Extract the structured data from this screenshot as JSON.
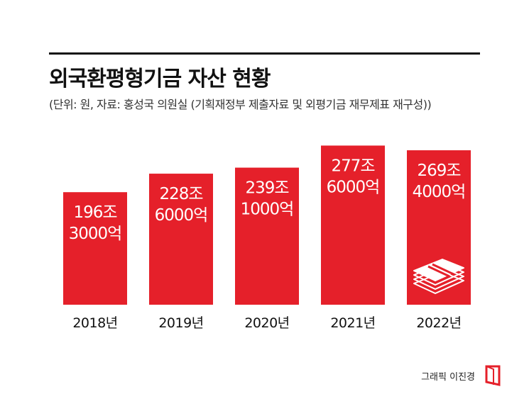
{
  "title": "외국환평형기금 자산 현황",
  "subtitle": "(단위: 원, 자료: 홍성국 의원실 (기획재정부 제출자료 및 외평기금 재무제표 재구성))",
  "credit": "그래픽 이진경",
  "colors": {
    "bar": "#e5202a",
    "label": "#ffffff",
    "text": "#111111"
  },
  "icons": {
    "money": "money-stack-icon",
    "logo": "brand-logo-icon"
  },
  "chart_data": {
    "type": "bar",
    "categories": [
      "2018년",
      "2019년",
      "2020년",
      "2021년",
      "2022년"
    ],
    "values": [
      196.3,
      228.6,
      239.1,
      277.6,
      269.4
    ],
    "value_labels": [
      [
        "196조",
        "3000억"
      ],
      [
        "228조",
        "6000억"
      ],
      [
        "239조",
        "1000억"
      ],
      [
        "277조",
        "6000억"
      ],
      [
        "269조",
        "4000억"
      ]
    ],
    "unit": "원",
    "title": "외국환평형기금 자산 현황",
    "xlabel": "",
    "ylabel": "",
    "ylim": [
      0,
      400
    ],
    "grid": false,
    "legend": "none"
  }
}
